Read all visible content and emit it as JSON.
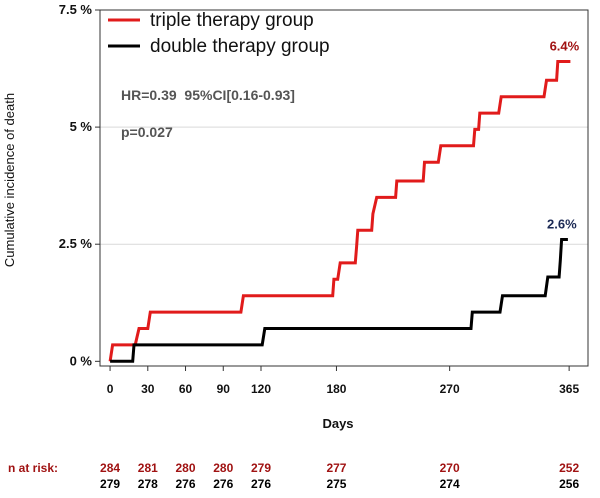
{
  "chart_data": {
    "type": "line",
    "xlabel": "Days",
    "ylabel": "Cumulative incidence of death",
    "xlim": [
      -8,
      380
    ],
    "ylim": [
      -0.1,
      7.5
    ],
    "x_ticks": [
      {
        "value": 0,
        "label": "0"
      },
      {
        "value": 30,
        "label": "30"
      },
      {
        "value": 60,
        "label": "60"
      },
      {
        "value": 90,
        "label": "90"
      },
      {
        "value": 120,
        "label": "120"
      },
      {
        "value": 180,
        "label": "180"
      },
      {
        "value": 270,
        "label": "270"
      },
      {
        "value": 365,
        "label": "365"
      }
    ],
    "y_ticks": [
      {
        "value": 0,
        "label": "0 %"
      },
      {
        "value": 2.5,
        "label": "2.5 %"
      },
      {
        "value": 5,
        "label": "5 %"
      },
      {
        "value": 7.5,
        "label": "7.5 %"
      }
    ],
    "grid_y": [
      2.5,
      5
    ],
    "legend_position": "top-left",
    "series": [
      {
        "name": "triple therapy group",
        "color": "#e11b1b",
        "end_label": "6.4%",
        "end_label_color": "#a01212",
        "points": [
          [
            0,
            0
          ],
          [
            2,
            0.35
          ],
          [
            20,
            0.35
          ],
          [
            23,
            0.7
          ],
          [
            30,
            0.7
          ],
          [
            32,
            1.05
          ],
          [
            104,
            1.05
          ],
          [
            106,
            1.4
          ],
          [
            177,
            1.4
          ],
          [
            178,
            1.75
          ],
          [
            181,
            1.75
          ],
          [
            183,
            2.1
          ],
          [
            195,
            2.1
          ],
          [
            196,
            2.45
          ],
          [
            197,
            2.8
          ],
          [
            208,
            2.8
          ],
          [
            209,
            3.15
          ],
          [
            212,
            3.5
          ],
          [
            227,
            3.5
          ],
          [
            228,
            3.85
          ],
          [
            249,
            3.85
          ],
          [
            250,
            4.25
          ],
          [
            261,
            4.25
          ],
          [
            263,
            4.6
          ],
          [
            289,
            4.6
          ],
          [
            290,
            4.95
          ],
          [
            293,
            4.95
          ],
          [
            294,
            5.3
          ],
          [
            309,
            5.3
          ],
          [
            311,
            5.65
          ],
          [
            345,
            5.65
          ],
          [
            347,
            6.0
          ],
          [
            355,
            6.0
          ],
          [
            356,
            6.4
          ],
          [
            366,
            6.4
          ]
        ]
      },
      {
        "name": "double therapy group",
        "color": "#000000",
        "end_label": "2.6%",
        "end_label_color": "#1c2a55",
        "points": [
          [
            0,
            0
          ],
          [
            18,
            0
          ],
          [
            19,
            0.35
          ],
          [
            121,
            0.35
          ],
          [
            123,
            0.7
          ],
          [
            287,
            0.7
          ],
          [
            288,
            1.05
          ],
          [
            310,
            1.05
          ],
          [
            312,
            1.4
          ],
          [
            346,
            1.4
          ],
          [
            348,
            1.8
          ],
          [
            357,
            1.8
          ],
          [
            358,
            2.15
          ],
          [
            359,
            2.6
          ],
          [
            364,
            2.6
          ]
        ]
      }
    ],
    "annotations": [
      "HR=0.39  95%CI[0.16-0.93]",
      "p=0.027"
    ]
  },
  "risk_table": {
    "label": "n at risk:",
    "rows": [
      {
        "color": "#a01212",
        "entries": [
          {
            "day": 0,
            "n": "284"
          },
          {
            "day": 30,
            "n": "281"
          },
          {
            "day": 60,
            "n": "280"
          },
          {
            "day": 90,
            "n": "280"
          },
          {
            "day": 120,
            "n": "279"
          },
          {
            "day": 180,
            "n": "277"
          },
          {
            "day": 270,
            "n": "270"
          },
          {
            "day": 365,
            "n": "252"
          }
        ]
      },
      {
        "color": "#000000",
        "entries": [
          {
            "day": 0,
            "n": "279"
          },
          {
            "day": 30,
            "n": "278"
          },
          {
            "day": 60,
            "n": "276"
          },
          {
            "day": 90,
            "n": "276"
          },
          {
            "day": 120,
            "n": "276"
          },
          {
            "day": 180,
            "n": "275"
          },
          {
            "day": 270,
            "n": "274"
          },
          {
            "day": 365,
            "n": "256"
          }
        ]
      }
    ]
  }
}
